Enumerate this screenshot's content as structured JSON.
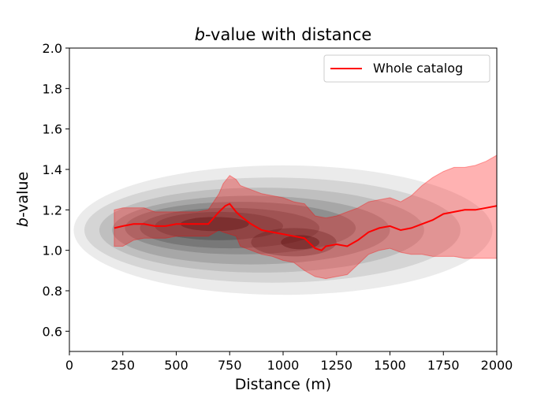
{
  "chart_data": {
    "type": "line",
    "title_italic": "b",
    "title_rest": "-value with distance",
    "xlabel": "Distance (m)",
    "ylabel_italic": "b",
    "ylabel_rest": "-value",
    "xlim": [
      0,
      2000
    ],
    "ylim": [
      0.5,
      2.0
    ],
    "x_ticks": [
      0,
      250,
      500,
      750,
      1000,
      1250,
      1500,
      1750,
      2000
    ],
    "y_ticks": [
      0.6,
      0.8,
      1.0,
      1.2,
      1.4,
      1.6,
      1.8,
      2.0
    ],
    "y_tick_labels": [
      "0.6",
      "0.8",
      "1.0",
      "1.2",
      "1.4",
      "1.6",
      "1.8",
      "2.0"
    ],
    "grid": false,
    "legend_position": "top-right",
    "series": [
      {
        "name": "Whole catalog",
        "color": "#ff0000",
        "x": [
          210,
          250,
          300,
          350,
          400,
          450,
          500,
          550,
          600,
          650,
          700,
          730,
          750,
          780,
          800,
          850,
          900,
          950,
          1000,
          1050,
          1100,
          1150,
          1180,
          1200,
          1250,
          1300,
          1350,
          1400,
          1450,
          1500,
          1550,
          1600,
          1650,
          1700,
          1750,
          1800,
          1850,
          1900,
          1950,
          2000
        ],
        "y": [
          1.11,
          1.12,
          1.13,
          1.13,
          1.12,
          1.12,
          1.13,
          1.13,
          1.13,
          1.13,
          1.19,
          1.22,
          1.23,
          1.19,
          1.17,
          1.13,
          1.1,
          1.09,
          1.08,
          1.07,
          1.06,
          1.01,
          1.0,
          1.02,
          1.03,
          1.02,
          1.05,
          1.09,
          1.11,
          1.12,
          1.1,
          1.11,
          1.13,
          1.15,
          1.18,
          1.19,
          1.2,
          1.2,
          1.21,
          1.22
        ]
      }
    ],
    "confidence_band": {
      "color": "#ff0000",
      "x": [
        210,
        250,
        300,
        350,
        400,
        450,
        500,
        550,
        600,
        650,
        700,
        720,
        750,
        780,
        800,
        850,
        900,
        950,
        1000,
        1050,
        1100,
        1150,
        1200,
        1250,
        1300,
        1350,
        1400,
        1450,
        1500,
        1550,
        1600,
        1650,
        1700,
        1750,
        1800,
        1850,
        1900,
        1950,
        2000
      ],
      "lower": [
        1.02,
        1.02,
        1.05,
        1.06,
        1.06,
        1.06,
        1.07,
        1.07,
        1.07,
        1.07,
        1.1,
        1.09,
        1.08,
        1.07,
        1.02,
        1.0,
        0.98,
        0.97,
        0.95,
        0.94,
        0.9,
        0.87,
        0.86,
        0.87,
        0.88,
        0.93,
        0.98,
        1.0,
        1.01,
        0.99,
        0.98,
        0.98,
        0.97,
        0.97,
        0.97,
        0.96,
        0.96,
        0.96,
        0.96
      ],
      "upper": [
        1.2,
        1.21,
        1.21,
        1.21,
        1.19,
        1.19,
        1.19,
        1.19,
        1.19,
        1.2,
        1.28,
        1.33,
        1.37,
        1.35,
        1.32,
        1.3,
        1.28,
        1.27,
        1.26,
        1.24,
        1.23,
        1.17,
        1.16,
        1.17,
        1.19,
        1.21,
        1.24,
        1.25,
        1.26,
        1.24,
        1.27,
        1.32,
        1.36,
        1.39,
        1.41,
        1.41,
        1.42,
        1.44,
        1.47
      ]
    },
    "density_contours": {
      "color": "#000000",
      "levels": [
        {
          "cx": 1000,
          "cy": 1.1,
          "rx": 980,
          "ry": 0.32,
          "alpha": 0.08
        },
        {
          "cx": 950,
          "cy": 1.1,
          "rx": 880,
          "ry": 0.26,
          "alpha": 0.09
        },
        {
          "cx": 900,
          "cy": 1.1,
          "rx": 760,
          "ry": 0.21,
          "alpha": 0.1
        },
        {
          "cx": 850,
          "cy": 1.1,
          "rx": 650,
          "ry": 0.17,
          "alpha": 0.12
        },
        {
          "cx": 800,
          "cy": 1.11,
          "rx": 540,
          "ry": 0.13,
          "alpha": 0.14
        },
        {
          "cx": 750,
          "cy": 1.11,
          "rx": 420,
          "ry": 0.1,
          "alpha": 0.16
        },
        {
          "cx": 700,
          "cy": 1.12,
          "rx": 300,
          "ry": 0.07,
          "alpha": 0.18
        },
        {
          "cx": 1050,
          "cy": 1.04,
          "rx": 200,
          "ry": 0.07,
          "alpha": 0.22
        },
        {
          "cx": 680,
          "cy": 1.13,
          "rx": 160,
          "ry": 0.035,
          "alpha": 0.3
        },
        {
          "cx": 1080,
          "cy": 1.04,
          "rx": 90,
          "ry": 0.035,
          "alpha": 0.32
        }
      ]
    }
  }
}
